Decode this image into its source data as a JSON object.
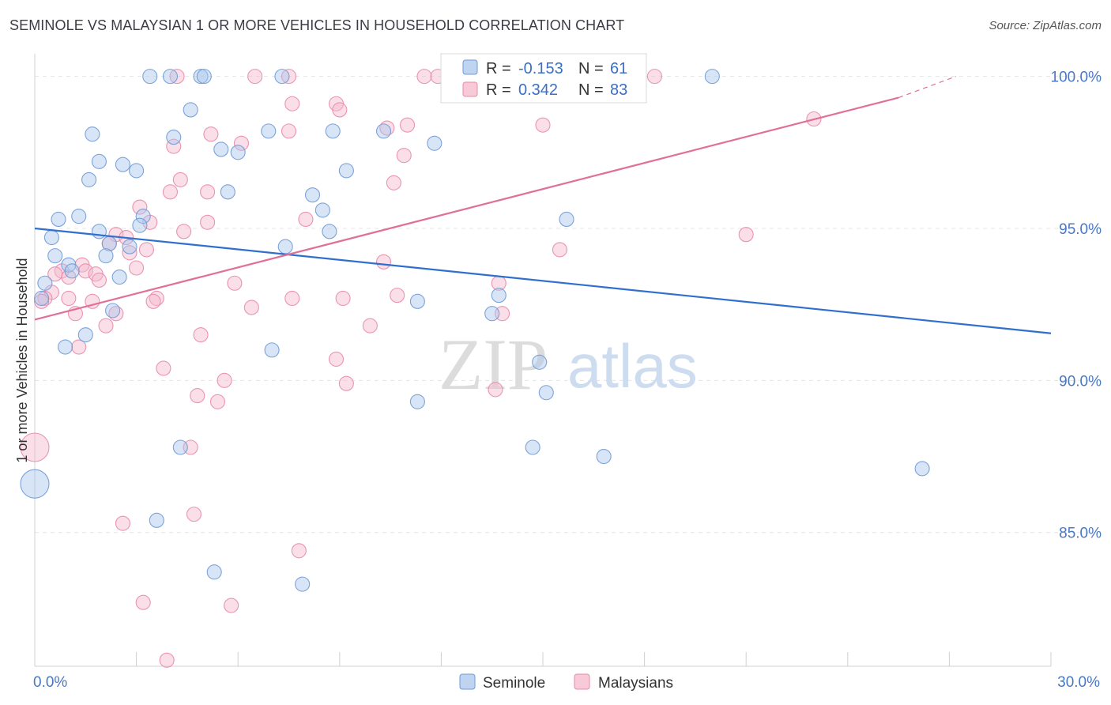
{
  "title": "SEMINOLE VS MALAYSIAN 1 OR MORE VEHICLES IN HOUSEHOLD CORRELATION CHART",
  "source": "Source: ZipAtlas.com",
  "watermark": {
    "zip": "ZIP",
    "atlas": "atlas"
  },
  "colors": {
    "seminole_fill": "#a9c6ec",
    "seminole_stroke": "#6f9ad6",
    "seminole_line": "#2f6fcd",
    "malaysian_fill": "#f5b8cb",
    "malaysian_stroke": "#e98aa8",
    "malaysian_line": "#e0709a",
    "accent_text": "#3a6fc4"
  },
  "legend_top": [
    {
      "r_label": "R = ",
      "r_value": "-0.153",
      "n_label": "N = ",
      "n_value": "61"
    },
    {
      "r_label": "R = ",
      "r_value": "0.342",
      "n_label": "N = ",
      "n_value": "83"
    }
  ],
  "chart_data": {
    "type": "scatter",
    "title": "SEMINOLE VS MALAYSIAN 1 OR MORE VEHICLES IN HOUSEHOLD CORRELATION CHART",
    "xlabel": "",
    "ylabel": "1 or more Vehicles in Household",
    "xlim": [
      0,
      30
    ],
    "ylim": [
      80.6,
      100.9
    ],
    "x_tick_labels": {
      "left": "0.0%",
      "right": "30.0%"
    },
    "y_ticks": [
      {
        "value": 100,
        "label": "100.0%"
      },
      {
        "value": 95,
        "label": "95.0%"
      },
      {
        "value": 90,
        "label": "90.0%"
      },
      {
        "value": 85,
        "label": "85.0%"
      }
    ],
    "grid": true,
    "legend_placement": "bottom-center",
    "series": [
      {
        "name": "Seminole",
        "r": -0.153,
        "n": 61,
        "trend": {
          "x": [
            0,
            30
          ],
          "y": [
            95.0,
            91.55
          ]
        },
        "points": [
          [
            3.4,
            100
          ],
          [
            4.0,
            100
          ],
          [
            4.9,
            100
          ],
          [
            5.0,
            100
          ],
          [
            7.3,
            100
          ],
          [
            20.0,
            100
          ],
          [
            4.6,
            98.9
          ],
          [
            1.7,
            98.1
          ],
          [
            4.1,
            98.0
          ],
          [
            6.9,
            98.2
          ],
          [
            8.8,
            98.2
          ],
          [
            10.3,
            98.2
          ],
          [
            11.8,
            97.8
          ],
          [
            5.5,
            97.6
          ],
          [
            6.0,
            97.5
          ],
          [
            1.9,
            97.2
          ],
          [
            2.6,
            97.1
          ],
          [
            3.0,
            96.9
          ],
          [
            9.2,
            96.9
          ],
          [
            1.6,
            96.6
          ],
          [
            5.7,
            96.2
          ],
          [
            8.2,
            96.1
          ],
          [
            8.5,
            95.6
          ],
          [
            3.2,
            95.4
          ],
          [
            1.3,
            95.4
          ],
          [
            0.7,
            95.3
          ],
          [
            15.7,
            95.3
          ],
          [
            3.1,
            95.1
          ],
          [
            1.9,
            94.9
          ],
          [
            8.7,
            94.9
          ],
          [
            0.5,
            94.7
          ],
          [
            2.2,
            94.5
          ],
          [
            2.8,
            94.4
          ],
          [
            7.4,
            94.4
          ],
          [
            0.6,
            94.1
          ],
          [
            2.1,
            94.1
          ],
          [
            1.0,
            93.8
          ],
          [
            1.1,
            93.6
          ],
          [
            2.5,
            93.4
          ],
          [
            0.3,
            93.2
          ],
          [
            13.7,
            92.8
          ],
          [
            0.2,
            92.7
          ],
          [
            11.3,
            92.6
          ],
          [
            2.3,
            92.3
          ],
          [
            13.5,
            92.2
          ],
          [
            1.5,
            91.5
          ],
          [
            0.9,
            91.1
          ],
          [
            7.0,
            91.0
          ],
          [
            14.9,
            90.6
          ],
          [
            15.1,
            89.6
          ],
          [
            11.3,
            89.3
          ],
          [
            4.3,
            87.8
          ],
          [
            14.7,
            87.8
          ],
          [
            16.8,
            87.5
          ],
          [
            26.2,
            87.1
          ],
          [
            0.0,
            86.6
          ],
          [
            3.6,
            85.4
          ],
          [
            5.3,
            83.7
          ],
          [
            7.9,
            83.3
          ]
        ]
      },
      {
        "name": "Malaysians",
        "r": 0.342,
        "n": 83,
        "trend": {
          "x": [
            0,
            25.5
          ],
          "y": [
            92.0,
            99.3
          ]
        },
        "trend_dashed": {
          "x": [
            25.5,
            27.2
          ],
          "y": [
            99.3,
            100.0
          ]
        },
        "points": [
          [
            4.2,
            100
          ],
          [
            6.5,
            100
          ],
          [
            7.5,
            100
          ],
          [
            11.5,
            100
          ],
          [
            11.9,
            100
          ],
          [
            14.1,
            100
          ],
          [
            18.3,
            100
          ],
          [
            7.6,
            99.1
          ],
          [
            8.9,
            99.1
          ],
          [
            9.0,
            98.9
          ],
          [
            23.0,
            98.6
          ],
          [
            10.4,
            98.3
          ],
          [
            7.5,
            98.2
          ],
          [
            11.0,
            98.4
          ],
          [
            15.0,
            98.4
          ],
          [
            5.2,
            98.1
          ],
          [
            6.1,
            97.8
          ],
          [
            4.1,
            97.7
          ],
          [
            10.9,
            97.4
          ],
          [
            4.3,
            96.6
          ],
          [
            10.6,
            96.5
          ],
          [
            4.0,
            96.2
          ],
          [
            5.1,
            96.2
          ],
          [
            3.1,
            95.7
          ],
          [
            3.4,
            95.2
          ],
          [
            5.1,
            95.2
          ],
          [
            8.0,
            95.3
          ],
          [
            4.4,
            94.9
          ],
          [
            2.4,
            94.8
          ],
          [
            21.0,
            94.8
          ],
          [
            2.7,
            94.7
          ],
          [
            2.2,
            94.5
          ],
          [
            3.3,
            94.3
          ],
          [
            2.8,
            94.2
          ],
          [
            15.5,
            94.3
          ],
          [
            10.3,
            93.9
          ],
          [
            3.0,
            93.7
          ],
          [
            1.4,
            93.8
          ],
          [
            1.5,
            93.6
          ],
          [
            0.8,
            93.6
          ],
          [
            1.8,
            93.5
          ],
          [
            0.6,
            93.5
          ],
          [
            1.0,
            93.4
          ],
          [
            1.9,
            93.3
          ],
          [
            5.9,
            93.2
          ],
          [
            13.7,
            93.2
          ],
          [
            0.5,
            92.9
          ],
          [
            1.0,
            92.7
          ],
          [
            3.6,
            92.7
          ],
          [
            7.6,
            92.7
          ],
          [
            9.1,
            92.7
          ],
          [
            10.7,
            92.8
          ],
          [
            1.7,
            92.6
          ],
          [
            3.5,
            92.6
          ],
          [
            0.3,
            92.7
          ],
          [
            0.2,
            92.6
          ],
          [
            6.4,
            92.4
          ],
          [
            1.2,
            92.2
          ],
          [
            2.4,
            92.2
          ],
          [
            13.8,
            92.2
          ],
          [
            2.1,
            91.8
          ],
          [
            9.9,
            91.8
          ],
          [
            4.9,
            91.5
          ],
          [
            1.3,
            91.1
          ],
          [
            8.9,
            90.7
          ],
          [
            3.8,
            90.4
          ],
          [
            5.6,
            90.0
          ],
          [
            9.2,
            89.9
          ],
          [
            4.8,
            89.5
          ],
          [
            13.6,
            89.7
          ],
          [
            5.4,
            89.3
          ],
          [
            4.6,
            87.8
          ],
          [
            0.0,
            87.8
          ],
          [
            4.7,
            85.6
          ],
          [
            2.6,
            85.3
          ],
          [
            7.8,
            84.4
          ],
          [
            3.2,
            82.7
          ],
          [
            5.8,
            82.6
          ],
          [
            3.9,
            80.8
          ]
        ]
      }
    ]
  }
}
